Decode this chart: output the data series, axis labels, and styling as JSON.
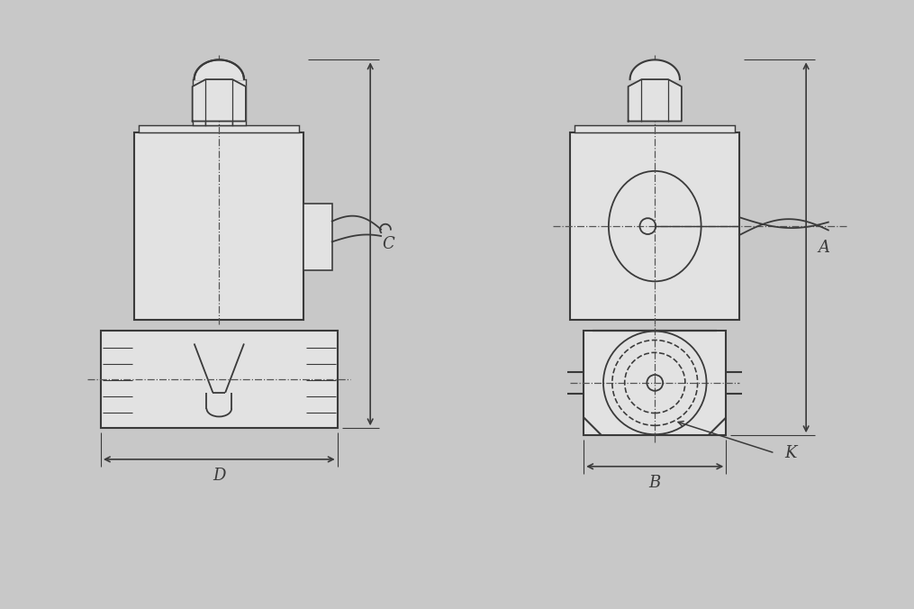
{
  "bg_color": "#c8c8c8",
  "line_color": "#3a3a3a",
  "fill_color": "#e2e2e2",
  "lw": 1.3,
  "tlw": 1.5,
  "font_size": 13,
  "labels": {
    "A": "A",
    "B": "B",
    "C": "C",
    "D": "D",
    "K": "K"
  }
}
